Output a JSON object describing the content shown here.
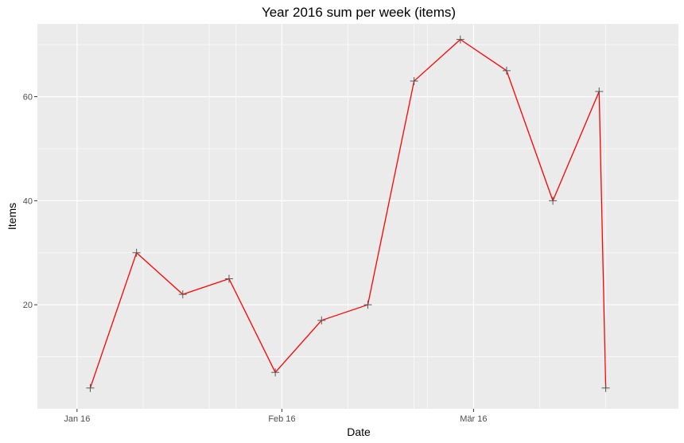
{
  "chart_data": {
    "type": "line",
    "title": "Year 2016 sum per week (items)",
    "xlabel": "Date",
    "ylabel": "Items",
    "x_tick_labels": [
      {
        "date": "2016-01-01",
        "label": "Jan 16"
      },
      {
        "date": "2016-02-01",
        "label": "Feb 16"
      },
      {
        "date": "2016-03-01",
        "label": "Mär 16"
      }
    ],
    "y_tick_labels": [
      20,
      40,
      60
    ],
    "xlim": [
      "2015-12-26",
      "2016-04-01"
    ],
    "ylim": [
      0,
      74
    ],
    "grid": true,
    "series": [
      {
        "color": "#ff0000",
        "marker": "plus",
        "x": [
          "2016-01-03",
          "2016-01-10",
          "2016-01-17",
          "2016-01-24",
          "2016-01-31",
          "2016-02-07",
          "2016-02-14",
          "2016-02-21",
          "2016-02-28",
          "2016-03-06",
          "2016-03-13",
          "2016-03-20",
          "2016-03-21"
        ],
        "values": [
          4,
          30,
          22,
          25,
          7,
          17,
          20,
          63,
          71,
          65,
          40,
          61,
          4
        ]
      }
    ]
  }
}
